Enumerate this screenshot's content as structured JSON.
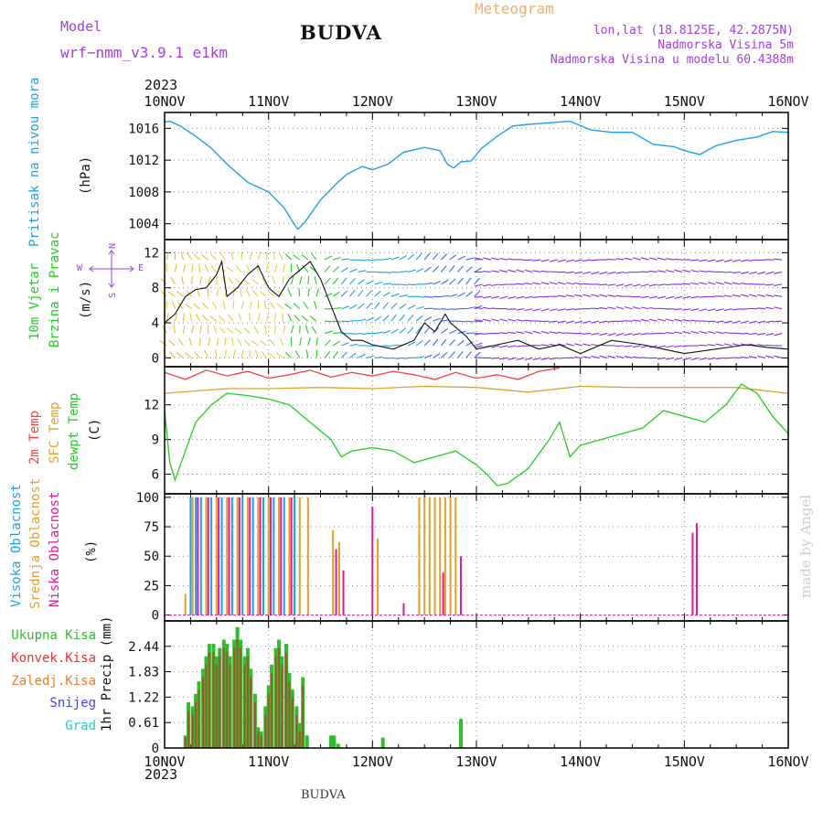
{
  "header": {
    "model_label": "Model",
    "model_name": "wrf−nmm_v3.9.1  e1km",
    "station_title": "BUDVA",
    "product": "Meteogram",
    "coords": "lon,lat (18.8125E, 42.2875N)",
    "elevation": "Nadmorska Visina 5m",
    "model_elevation": "Nadmorska Visina u modelu 60.4388m",
    "year_top": "2023",
    "year_bottom": "2023",
    "footer_station": "BUDVA",
    "credit": "made by Angel"
  },
  "colors": {
    "pressure": "#1ea0e6",
    "wind_label": "#22cc22",
    "dir_label": "#a040e0",
    "temp2m": "#ee4444",
    "sfc": "#e0a030",
    "dewpt": "#22cc22",
    "high_cloud": "#1ea0e6",
    "mid_cloud": "#e0a030",
    "low_cloud": "#e0189a",
    "total_rain": "#33bb33",
    "conv_rain": "#ee3333",
    "frz_rain": "#f07a30",
    "snow": "#4444ee",
    "graupel": "#22ccc0",
    "header_purple": "#a040e0",
    "header_orange": "#e8b070",
    "credit": "#cccccc"
  },
  "chart_data": [
    {
      "type": "line",
      "panel": "pressure",
      "ylabel": "Pritisak na nivou mora",
      "unit": "(hPa)",
      "ylim": [
        1002,
        1018
      ],
      "yticks": [
        1004,
        1008,
        1012,
        1016
      ],
      "xticks": [
        "10NOV",
        "11NOV",
        "12NOV",
        "13NOV",
        "14NOV",
        "15NOV",
        "16NOV"
      ],
      "x_range_days": [
        0,
        6
      ],
      "grid": true,
      "series": [
        {
          "name": "Pritisak na nivou mora",
          "x": [
            0,
            0.05,
            0.15,
            0.3,
            0.45,
            0.6,
            0.8,
            1.0,
            1.15,
            1.22,
            1.28,
            1.35,
            1.5,
            1.65,
            1.75,
            1.9,
            2.0,
            2.15,
            2.3,
            2.5,
            2.65,
            2.72,
            2.78,
            2.85,
            2.95,
            3.05,
            3.2,
            3.35,
            3.5,
            3.7,
            3.9,
            4.1,
            4.3,
            4.5,
            4.7,
            4.9,
            5.0,
            5.15,
            5.3,
            5.5,
            5.7,
            5.85,
            6.0
          ],
          "y": [
            1016.8,
            1016.9,
            1016.3,
            1015.0,
            1013.5,
            1011.5,
            1009.2,
            1008.0,
            1006.0,
            1004.5,
            1003.3,
            1004.2,
            1007.0,
            1009.0,
            1010.2,
            1011.2,
            1010.8,
            1011.5,
            1013.0,
            1013.6,
            1013.2,
            1011.5,
            1011.0,
            1011.8,
            1011.9,
            1013.5,
            1015.0,
            1016.3,
            1016.5,
            1016.7,
            1016.9,
            1015.8,
            1015.5,
            1015.5,
            1014.0,
            1013.7,
            1013.2,
            1012.7,
            1013.8,
            1014.5,
            1014.9,
            1015.6,
            1015.5
          ]
        }
      ]
    },
    {
      "type": "line",
      "panel": "wind",
      "ylabel": "10m Vjetar",
      "ylabel2": "Brzina i Pravac",
      "unit": "(m/s)",
      "direction_legend": {
        "n": "N",
        "s": "S",
        "e": "E",
        "w": "W"
      },
      "ylim": [
        -1,
        13.5
      ],
      "yticks": [
        0,
        4,
        8,
        12
      ],
      "grid": true,
      "series": [
        {
          "name": "wind speed",
          "x": [
            0,
            0.1,
            0.2,
            0.3,
            0.4,
            0.5,
            0.55,
            0.6,
            0.7,
            0.8,
            0.9,
            1.0,
            1.1,
            1.2,
            1.3,
            1.4,
            1.5,
            1.6,
            1.7,
            1.8,
            1.9,
            2.0,
            2.2,
            2.4,
            2.5,
            2.6,
            2.7,
            2.75,
            2.8,
            2.9,
            3.0,
            3.2,
            3.4,
            3.6,
            3.8,
            4.0,
            4.3,
            4.6,
            4.8,
            5.0,
            5.3,
            5.6,
            5.8,
            6.0
          ],
          "y": [
            4,
            5,
            7,
            7.8,
            8,
            9.5,
            11,
            7,
            8,
            9.5,
            10.5,
            8,
            7,
            9,
            10,
            11,
            9,
            6,
            3,
            2,
            2,
            1.5,
            1,
            2,
            4,
            3,
            5,
            4,
            3.5,
            2.5,
            1,
            1.5,
            2,
            1,
            1.5,
            0.5,
            2,
            1.5,
            1,
            0.5,
            1,
            1.5,
            1.2,
            1
          ]
        }
      ]
    },
    {
      "type": "line",
      "panel": "temperature",
      "ylabel_2m": "2m Temp",
      "ylabel_sfc": "SFC Temp",
      "ylabel_dew": "dewpt Temp",
      "unit": "(C)",
      "ylim": [
        4.3,
        15.3
      ],
      "yticks": [
        6,
        9,
        12
      ],
      "grid": true,
      "series": [
        {
          "name": "2m Temp",
          "x": [
            0,
            0.2,
            0.4,
            0.6,
            0.8,
            1.0,
            1.2,
            1.4,
            1.6,
            1.8,
            2.0,
            2.2,
            2.4,
            2.6,
            2.8,
            3.0,
            3.2,
            3.4,
            3.6,
            3.8
          ],
          "y": [
            14.8,
            14.2,
            15.0,
            14.5,
            14.9,
            14.3,
            14.6,
            15.0,
            14.4,
            14.8,
            14.5,
            14.9,
            14.6,
            14.2,
            14.8,
            14.3,
            14.6,
            14.2,
            14.9,
            15.2
          ]
        },
        {
          "name": "SFC Temp",
          "x": [
            0,
            0.3,
            0.6,
            1.0,
            1.5,
            2.0,
            2.5,
            3.0,
            3.5,
            4.0,
            4.5,
            5.0,
            5.5,
            6.0
          ],
          "y": [
            13.0,
            13.2,
            13.4,
            13.4,
            13.5,
            13.4,
            13.6,
            13.5,
            13.1,
            13.6,
            13.5,
            13.5,
            13.5,
            13.0
          ]
        },
        {
          "name": "dewpt Temp",
          "x": [
            0,
            0.05,
            0.1,
            0.2,
            0.3,
            0.45,
            0.6,
            0.8,
            1.0,
            1.2,
            1.4,
            1.6,
            1.7,
            1.8,
            2.0,
            2.2,
            2.4,
            2.6,
            2.8,
            3.0,
            3.1,
            3.2,
            3.3,
            3.5,
            3.7,
            3.8,
            3.9,
            4.0,
            4.2,
            4.4,
            4.6,
            4.8,
            5.0,
            5.2,
            5.4,
            5.55,
            5.7,
            5.85,
            6.0
          ],
          "y": [
            11.5,
            7,
            5.5,
            8,
            10.5,
            12,
            13,
            12.8,
            12.5,
            12.0,
            10.5,
            9.0,
            7.5,
            8.0,
            8.3,
            8.0,
            7.0,
            7.5,
            8.0,
            6.8,
            6.0,
            5.0,
            5.2,
            6.5,
            9.0,
            10.5,
            7.5,
            8.5,
            9.0,
            9.5,
            10.0,
            11.5,
            11.0,
            10.5,
            12.0,
            13.8,
            13.0,
            11.0,
            9.5
          ]
        }
      ]
    },
    {
      "type": "bar",
      "panel": "cloud",
      "ylabel_high": "Visoka Oblacnost",
      "ylabel_mid": "Srednja Oblacnost",
      "ylabel_low": "Niska Oblacnost",
      "unit": "(%)",
      "ylim": [
        -5,
        103
      ],
      "yticks": [
        0,
        25,
        50,
        75,
        100
      ],
      "grid": true,
      "series": [
        {
          "name": "Visoka Oblacnost",
          "x": [
            0.25,
            0.3,
            0.35,
            0.45,
            0.55,
            0.65,
            0.75,
            0.85,
            0.95,
            1.05,
            1.15,
            1.25
          ],
          "values": [
            100,
            100,
            100,
            100,
            100,
            100,
            100,
            100,
            100,
            100,
            100,
            100
          ]
        },
        {
          "name": "Srednja Oblacnost",
          "x": [
            0.2,
            0.27,
            0.4,
            0.5,
            0.6,
            0.7,
            0.8,
            0.9,
            1.0,
            1.1,
            1.2,
            1.3,
            1.38,
            1.62,
            1.68,
            2.05,
            2.45,
            2.5,
            2.55,
            2.6,
            2.65,
            2.7,
            2.75,
            2.8
          ],
          "values": [
            18,
            100,
            100,
            100,
            100,
            100,
            100,
            100,
            100,
            100,
            100,
            100,
            100,
            72,
            62,
            65,
            100,
            100,
            100,
            100,
            100,
            100,
            100,
            100
          ]
        },
        {
          "name": "Niska Oblacnost",
          "x": [
            0.32,
            0.42,
            0.52,
            0.62,
            0.72,
            0.82,
            0.92,
            1.02,
            1.12,
            1.22,
            1.65,
            1.72,
            2.0,
            2.3,
            2.68,
            2.85,
            5.08,
            5.12
          ],
          "values": [
            100,
            100,
            100,
            100,
            100,
            100,
            100,
            100,
            100,
            100,
            56,
            38,
            92,
            10,
            36,
            50,
            70,
            78
          ]
        }
      ]
    },
    {
      "type": "bar",
      "panel": "precip",
      "ylabel": "1hr Precip",
      "unit": "(mm)",
      "legend": [
        "Ukupna Kisa",
        "Konvek.Kisa",
        "Zaledj.Kisa",
        "Snijeg",
        "Grad"
      ],
      "ylim": [
        0,
        3.05
      ],
      "yticks": [
        0,
        0.61,
        1.22,
        1.83,
        2.44
      ],
      "grid": true,
      "series": [
        {
          "name": "Ukupna Kisa",
          "x": [
            0.2,
            0.23,
            0.27,
            0.3,
            0.33,
            0.37,
            0.4,
            0.43,
            0.47,
            0.5,
            0.53,
            0.57,
            0.6,
            0.63,
            0.67,
            0.7,
            0.73,
            0.77,
            0.8,
            0.83,
            0.87,
            0.9,
            0.93,
            0.97,
            1.0,
            1.03,
            1.07,
            1.1,
            1.13,
            1.17,
            1.2,
            1.23,
            1.27,
            1.3,
            1.33,
            1.37,
            1.6,
            1.63,
            1.67,
            2.1,
            2.85
          ],
          "values": [
            0.3,
            1.1,
            1.0,
            1.3,
            1.6,
            1.9,
            2.2,
            2.5,
            2.5,
            2.2,
            2.4,
            2.6,
            2.5,
            2.2,
            2.6,
            2.9,
            2.6,
            2.2,
            2.4,
            1.9,
            1.3,
            0.5,
            0.4,
            1.0,
            1.5,
            2.0,
            2.4,
            2.6,
            2.2,
            2.5,
            1.8,
            1.4,
            1.0,
            0.6,
            1.7,
            0.3,
            0.3,
            0.3,
            0.1,
            0.25,
            0.7
          ]
        },
        {
          "name": "Konvek.Kisa",
          "x": [
            0.2,
            0.23,
            0.27,
            0.3,
            0.33,
            0.37,
            0.4,
            0.43,
            0.47,
            0.5,
            0.53,
            0.57,
            0.6,
            0.63,
            0.67,
            0.7,
            0.73,
            0.77,
            0.8,
            0.83,
            0.87,
            0.9,
            0.93,
            0.97,
            1.0,
            1.03,
            1.07,
            1.1,
            1.13,
            1.17,
            1.2,
            1.23,
            1.27,
            1.3,
            1.33
          ],
          "values": [
            0.25,
            0.9,
            0.8,
            1.1,
            1.4,
            1.7,
            2.0,
            2.3,
            2.3,
            2.0,
            2.2,
            2.4,
            2.3,
            2.0,
            2.4,
            2.6,
            2.4,
            2.0,
            2.2,
            1.7,
            1.1,
            0.4,
            0.3,
            0.8,
            1.3,
            1.8,
            2.2,
            2.4,
            2.0,
            2.3,
            1.6,
            1.2,
            0.8,
            0.4,
            1.5
          ]
        }
      ]
    }
  ]
}
